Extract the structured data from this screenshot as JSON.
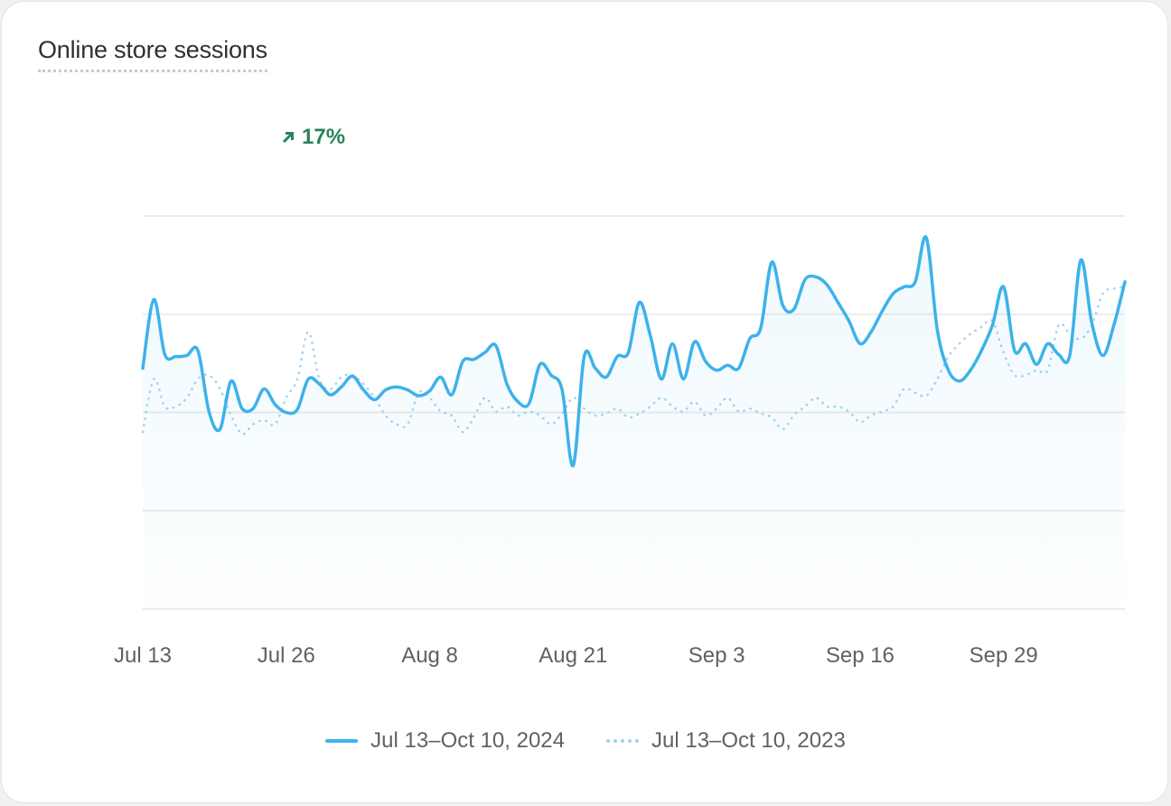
{
  "card": {
    "title": "Online store sessions",
    "change": "17%",
    "change_icon": "arrow-up-right-icon",
    "change_color": "#29845a"
  },
  "chart_data": {
    "type": "line",
    "title": "Online store sessions",
    "xlabel": "",
    "ylabel": "",
    "ylim": [
      0,
      400
    ],
    "y_gridlines": [
      0,
      100,
      200,
      300,
      400
    ],
    "grid": true,
    "x_start": "Jul 13",
    "x_tick_labels": [
      "Jul 13",
      "Jul 26",
      "Aug 8",
      "Aug 21",
      "Sep 3",
      "Sep 16",
      "Sep 29"
    ],
    "x_tick_day_index": [
      0,
      13,
      26,
      39,
      52,
      65,
      78
    ],
    "legend_position": "bottom",
    "series": [
      {
        "name": "Jul 13–Oct 10, 2024",
        "style": "solid",
        "color": "#3db2ea",
        "values": [
          245,
          315,
          259,
          257,
          258,
          263,
          201,
          183,
          232,
          204,
          204,
          224,
          208,
          200,
          203,
          234,
          229,
          218,
          226,
          237,
          223,
          213,
          223,
          226,
          223,
          217,
          222,
          236,
          218,
          252,
          254,
          261,
          268,
          229,
          211,
          209,
          249,
          238,
          223,
          146,
          257,
          245,
          236,
          257,
          261,
          312,
          278,
          234,
          270,
          234,
          272,
          252,
          243,
          248,
          245,
          275,
          286,
          353,
          309,
          305,
          335,
          338,
          330,
          312,
          293,
          270,
          282,
          303,
          321,
          328,
          333,
          378,
          284,
          243,
          232,
          243,
          263,
          289,
          328,
          263,
          270,
          249,
          270,
          259,
          258,
          355,
          291,
          258,
          289,
          333
        ]
      },
      {
        "name": "Jul 13–Oct 10, 2023",
        "style": "dotted",
        "color": "#9fd3f3",
        "values": [
          180,
          234,
          206,
          206,
          215,
          234,
          238,
          224,
          197,
          178,
          188,
          192,
          188,
          215,
          234,
          282,
          234,
          224,
          236,
          238,
          229,
          215,
          197,
          188,
          188,
          220,
          215,
          201,
          197,
          180,
          195,
          215,
          201,
          206,
          197,
          201,
          197,
          188,
          199,
          215,
          204,
          197,
          199,
          204,
          195,
          199,
          206,
          215,
          206,
          201,
          211,
          197,
          204,
          215,
          201,
          204,
          199,
          195,
          183,
          197,
          206,
          215,
          206,
          206,
          201,
          190,
          197,
          201,
          206,
          224,
          220,
          217,
          234,
          257,
          270,
          280,
          287,
          293,
          261,
          238,
          238,
          243,
          243,
          289,
          280,
          275,
          289,
          321,
          326,
          328
        ]
      }
    ]
  }
}
